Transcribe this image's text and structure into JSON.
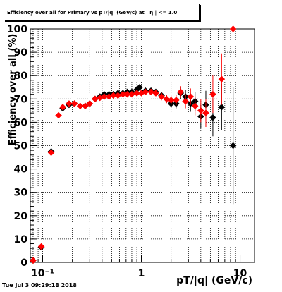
{
  "title": "Efficiency over all for Primary vs pT/|q| (GeV/c) at | η | <= 1.0",
  "date_stamp": "Tue Jul  3 09:29:18 2018",
  "chart_data": {
    "type": "scatter",
    "xlabel": "pT/|q| (GeV/c)",
    "ylabel": "Efficiency over all (%)",
    "xscale": "log",
    "xlim": [
      0.075,
      14
    ],
    "ylim": [
      0,
      100
    ],
    "grid": true,
    "x_tick_labels": [
      "10⁻¹",
      "1",
      "10"
    ],
    "x_tick_values": [
      0.1,
      1,
      10
    ],
    "y_tick_labels": [
      "0",
      "10",
      "20",
      "30",
      "40",
      "50",
      "60",
      "70",
      "80",
      "90",
      "100"
    ],
    "series": [
      {
        "color": "#000000",
        "points": [
          {
            "x": 0.08,
            "y": 0.8,
            "ey": 1.0
          },
          {
            "x": 0.097,
            "y": 6.5,
            "ey": 1.0
          },
          {
            "x": 0.122,
            "y": 47.5,
            "ey": 1.0
          },
          {
            "x": 0.16,
            "y": 66,
            "ey": 1.0
          },
          {
            "x": 0.185,
            "y": 67.5,
            "ey": 1.0
          },
          {
            "x": 0.21,
            "y": 68,
            "ey": 1.0
          },
          {
            "x": 0.24,
            "y": 67,
            "ey": 1.0
          },
          {
            "x": 0.27,
            "y": 67,
            "ey": 1.0
          },
          {
            "x": 0.3,
            "y": 68,
            "ey": 1.0
          },
          {
            "x": 0.34,
            "y": 70,
            "ey": 1.0
          },
          {
            "x": 0.38,
            "y": 71,
            "ey": 1.0
          },
          {
            "x": 0.42,
            "y": 72,
            "ey": 1.0
          },
          {
            "x": 0.47,
            "y": 72,
            "ey": 1.0
          },
          {
            "x": 0.52,
            "y": 72,
            "ey": 1.0
          },
          {
            "x": 0.58,
            "y": 72.5,
            "ey": 1.0
          },
          {
            "x": 0.65,
            "y": 72.5,
            "ey": 1.0
          },
          {
            "x": 0.72,
            "y": 73,
            "ey": 1.0
          },
          {
            "x": 0.8,
            "y": 73,
            "ey": 1.0
          },
          {
            "x": 0.9,
            "y": 74,
            "ey": 1.2
          },
          {
            "x": 0.96,
            "y": 75,
            "ey": 1.2
          },
          {
            "x": 1.1,
            "y": 73.5,
            "ey": 1.2
          },
          {
            "x": 1.25,
            "y": 73.5,
            "ey": 1.2
          },
          {
            "x": 1.4,
            "y": 73,
            "ey": 1.3
          },
          {
            "x": 1.6,
            "y": 71.5,
            "ey": 1.5
          },
          {
            "x": 1.8,
            "y": 70,
            "ey": 1.6
          },
          {
            "x": 2.0,
            "y": 68,
            "ey": 1.8
          },
          {
            "x": 2.25,
            "y": 68,
            "ey": 2
          },
          {
            "x": 2.5,
            "y": 72.5,
            "ey": 2.5
          },
          {
            "x": 2.8,
            "y": 71,
            "ey": 3
          },
          {
            "x": 3.15,
            "y": 68,
            "ey": 3.5
          },
          {
            "x": 3.5,
            "y": 69,
            "ey": 4
          },
          {
            "x": 4.0,
            "y": 62.5,
            "ey": 5
          },
          {
            "x": 4.5,
            "y": 67.5,
            "ey": 6
          },
          {
            "x": 5.3,
            "y": 62,
            "ey": 8
          },
          {
            "x": 6.5,
            "y": 66.5,
            "ey": 10
          },
          {
            "x": 8.5,
            "y": 50,
            "ey": 25
          }
        ]
      },
      {
        "color": "#ff0000",
        "points": [
          {
            "x": 0.08,
            "y": 0.8,
            "ey": 1.0
          },
          {
            "x": 0.097,
            "y": 6.8,
            "ey": 1.0
          },
          {
            "x": 0.122,
            "y": 47,
            "ey": 1.0
          },
          {
            "x": 0.145,
            "y": 63,
            "ey": 1.0
          },
          {
            "x": 0.16,
            "y": 66.5,
            "ey": 1.0
          },
          {
            "x": 0.185,
            "y": 68,
            "ey": 1.0
          },
          {
            "x": 0.21,
            "y": 68,
            "ey": 1.0
          },
          {
            "x": 0.24,
            "y": 67,
            "ey": 1.0
          },
          {
            "x": 0.27,
            "y": 67,
            "ey": 1.0
          },
          {
            "x": 0.3,
            "y": 68,
            "ey": 1.0
          },
          {
            "x": 0.34,
            "y": 70,
            "ey": 1.0
          },
          {
            "x": 0.38,
            "y": 70.5,
            "ey": 1.0
          },
          {
            "x": 0.42,
            "y": 71,
            "ey": 1.0
          },
          {
            "x": 0.47,
            "y": 71,
            "ey": 1.0
          },
          {
            "x": 0.52,
            "y": 71.5,
            "ey": 1.0
          },
          {
            "x": 0.58,
            "y": 71.5,
            "ey": 1.0
          },
          {
            "x": 0.65,
            "y": 72,
            "ey": 1.0
          },
          {
            "x": 0.72,
            "y": 72,
            "ey": 1.0
          },
          {
            "x": 0.8,
            "y": 72,
            "ey": 1.0
          },
          {
            "x": 0.9,
            "y": 72.5,
            "ey": 1.2
          },
          {
            "x": 1.0,
            "y": 72.5,
            "ey": 1.2
          },
          {
            "x": 1.1,
            "y": 73,
            "ey": 1.2
          },
          {
            "x": 1.25,
            "y": 73,
            "ey": 1.3
          },
          {
            "x": 1.4,
            "y": 72.5,
            "ey": 1.4
          },
          {
            "x": 1.6,
            "y": 71,
            "ey": 1.6
          },
          {
            "x": 1.8,
            "y": 70,
            "ey": 1.8
          },
          {
            "x": 2.0,
            "y": 69.5,
            "ey": 2
          },
          {
            "x": 2.25,
            "y": 69.5,
            "ey": 2.2
          },
          {
            "x": 2.5,
            "y": 73,
            "ey": 2.5
          },
          {
            "x": 2.8,
            "y": 69,
            "ey": 3
          },
          {
            "x": 3.15,
            "y": 71,
            "ey": 3.5
          },
          {
            "x": 3.5,
            "y": 67,
            "ey": 4
          },
          {
            "x": 4.0,
            "y": 65,
            "ey": 5
          },
          {
            "x": 4.5,
            "y": 64,
            "ey": 6
          },
          {
            "x": 5.3,
            "y": 72,
            "ey": 8
          },
          {
            "x": 6.5,
            "y": 78.5,
            "ey": 11
          },
          {
            "x": 8.5,
            "y": 100,
            "ey": 0
          }
        ]
      }
    ]
  }
}
